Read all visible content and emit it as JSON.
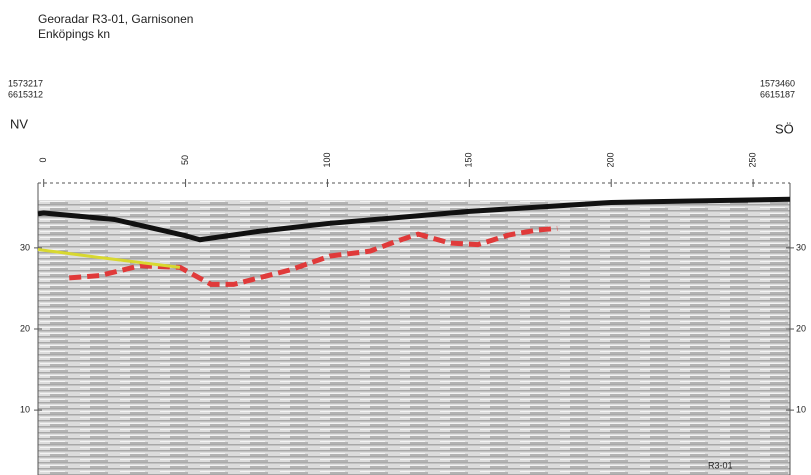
{
  "title": "Georadar R3-01, Garnisonen",
  "subtitle": "Enköpings kn",
  "left_coords": [
    "1573217",
    "6615312"
  ],
  "right_coords": [
    "1573460",
    "6615187"
  ],
  "left_direction": "NV",
  "right_direction": "SÖ",
  "chart_data": {
    "type": "radargram",
    "annotation": "R3-01",
    "xlim": [
      -2,
      263
    ],
    "xticks": [
      0,
      50,
      100,
      150,
      200,
      250
    ],
    "ylim": [
      2,
      38
    ],
    "yticks": [
      10,
      20,
      30
    ],
    "series": [
      {
        "color": "#111111",
        "x": [
          -2,
          0,
          25,
          50,
          55,
          75,
          100,
          150,
          200,
          263
        ],
        "values": [
          34.2,
          34.3,
          33.5,
          31.5,
          31,
          32,
          33,
          34.5,
          35.6,
          36
        ]
      },
      {
        "color": "#e03a3a",
        "x": [
          9,
          20,
          34,
          48,
          59,
          67,
          87,
          101,
          115,
          125,
          132,
          143,
          153,
          164,
          174,
          181
        ],
        "values": [
          26.3,
          26.6,
          27.8,
          27.6,
          25.5,
          25.5,
          27.3,
          29,
          29.6,
          30.9,
          31.7,
          30.6,
          30.4,
          31.6,
          32.2,
          32.4
        ]
      },
      {
        "color": "#d8d830",
        "x": [
          -2,
          20,
          48
        ],
        "values": [
          29.8,
          28.8,
          27.6
        ]
      }
    ]
  }
}
